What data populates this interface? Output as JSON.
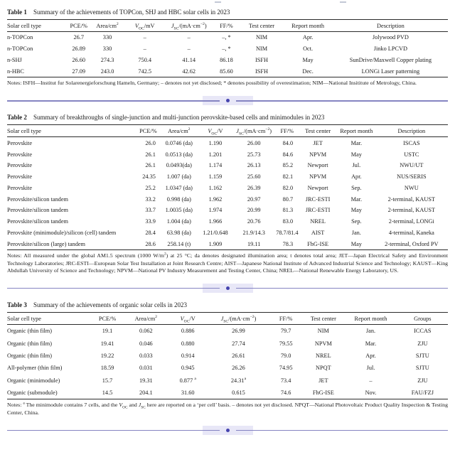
{
  "page": {
    "background": "#ffffff",
    "text_color": "#1b1b1b",
    "rule_color": "#2b2b2b"
  },
  "divider": {
    "dot": "",
    "line_color": "#8584c2",
    "dot_color": "#4543ae",
    "highlight_color": "#e8e7f7"
  },
  "tables": [
    {
      "caption_label": "Table 1",
      "caption_text": "Summary of the achievements of TOPCon, SHJ and HBC solar cells in 2023",
      "columns": [
        "Solar cell type",
        "PCE/%",
        "Area/cm^2^",
        "*V*~OC~/mV",
        "*J*~SC~/(mA·cm^−2^)",
        "FF/%",
        "Test center",
        "Report month",
        "Description"
      ],
      "rows": [
        [
          "n-TOPCon",
          "26.7",
          "330",
          "–",
          "–",
          "–, *",
          "NIM",
          "Apr.",
          "Jolywood PVD"
        ],
        [
          "n-TOPCon",
          "26.89",
          "330",
          "–",
          "–",
          "–, *",
          "NIM",
          "Oct.",
          "Jinko LPCVD"
        ],
        [
          "n-SHJ",
          "26.60",
          "274.3",
          "750.4",
          "41.14",
          "86.18",
          "ISFH",
          "May",
          "SunDrive/Maxwell Copper plating"
        ],
        [
          "n-HBC",
          "27.09",
          "243.0",
          "742.5",
          "42.62",
          "85.60",
          "ISFH",
          "Dec.",
          "LONGi Laser patterning"
        ]
      ],
      "notes": "Notes: ISFH—Institut fur Solarenergieforschung Hameln, Germany; – denotes not yet disclosed; * denotes possibility of overestimation; NIM—National Insititute of Metrology, China."
    },
    {
      "caption_label": "Table 2",
      "caption_text": "Summary of breakthroughs of single-junction and multi-junction perovskite-based cells and minimodules in 2023",
      "columns": [
        "Solar cell type",
        "PCE/%",
        "Area/cm^2^",
        "*V*~OC~/V",
        "*J*~SC~/(mA·cm^−2^)",
        "FF/%",
        "Test center",
        "Report month",
        "Description"
      ],
      "rows": [
        [
          "Perovskite",
          "26.0",
          "0.0746 (da)",
          "1.190",
          "26.00",
          "84.0",
          "JET",
          "Mar.",
          "ISCAS"
        ],
        [
          "Perovskite",
          "26.1",
          "0.0513 (da)",
          "1.201",
          "25.73",
          "84.6",
          "NPVM",
          "May",
          "USTC"
        ],
        [
          "Perovskite",
          "26.1",
          "0.0493(da)",
          "1.174",
          "26.13",
          "85.2",
          "Newport",
          "Jul.",
          "NWU/UT"
        ],
        [
          "Perovskite",
          "24.35",
          "1.007 (da)",
          "1.159",
          "25.60",
          "82.1",
          "NPVM",
          "Apr.",
          "NUS/SERIS"
        ],
        [
          "Perovskite",
          "25.2",
          "1.0347 (da)",
          "1.162",
          "26.39",
          "82.0",
          "Newport",
          "Sep.",
          "NWU"
        ],
        [
          "Perovskite/silicon tandem",
          "33.2",
          "0.998 (da)",
          "1.962",
          "20.97",
          "80.7",
          "JRC-ESTI",
          "Mar.",
          "2-terminal, KAUST"
        ],
        [
          "Perovskite/silicon tandem",
          "33.7",
          "1.0035 (da)",
          "1.974",
          "20.99",
          "81.3",
          "JRC-ESTI",
          "May",
          "2-terminal, KAUST"
        ],
        [
          "Perovskite/silicon tandem",
          "33.9",
          "1.004 (da)",
          "1.966",
          "20.76",
          "83.0",
          "NREL",
          "Sep.",
          "2-terminal, LONGi"
        ],
        [
          "Perovskite (minimodule)/silicon (cell) tandem",
          "28.4",
          "63.98 (da)",
          "1.21/0.648",
          "21.9/14.3",
          "78.7/81.4",
          "AIST",
          "Jan.",
          "4-terminal, Kaneka"
        ],
        [
          "Perovskite/silicon (large) tandem",
          "28.6",
          "258.14 (t)",
          "1.909",
          "19.11",
          "78.3",
          "FhG-ISE",
          "May",
          "2-terminal, Oxford PV"
        ]
      ],
      "notes": "Notes: All measured under the global AM1.5 spectrum (1000 W/m^2^) at 25 °C; da denotes designated illumination area; t denotes total area; JET—Japan Electrical Safety and Environment Technology Laboratories; JRC-ESTI—European Solar Test Installation at Joint Research Centre; AIST—Japanese National Institute of Advanced Industrial Science and Technology; KAUST—King Abdullah University of Science and Technology; NPVM—National PV Industry Measurement and Testing Center, China; NREL—National Renewable Energy Laboratory, US."
    },
    {
      "caption_label": "Table 3",
      "caption_text": "Summary of the achievements of organic solar cells in 2023",
      "columns": [
        "Solar cell type",
        "PCE/%",
        "Area/cm^2^",
        "*V*~OC~/V",
        "*J*~SC~/(mA·cm^−2^)",
        "FF/%",
        "Test center",
        "Report month",
        "Groups"
      ],
      "rows": [
        [
          "Organic (thin film)",
          "19.1",
          "0.062",
          "0.886",
          "26.99",
          "79.7",
          "NIM",
          "Jan.",
          "ICCAS"
        ],
        [
          "Organic (thin film)",
          "19.41",
          "0.046",
          "0.880",
          "27.74",
          "79.55",
          "NPVM",
          "Mar.",
          "ZJU"
        ],
        [
          "Organic (thin film)",
          "19.22",
          "0.033",
          "0.914",
          "26.61",
          "79.0",
          "NREL",
          "Apr.",
          "SJTU"
        ],
        [
          "All-polymer (thin film)",
          "18.59",
          "0.031",
          "0.945",
          "26.26",
          "74.95",
          "NPQT",
          "Jul.",
          "SJTU"
        ],
        [
          "Organic (minimodule)",
          "15.7",
          "19.31",
          "0.877 ^a^",
          "24.31^a^",
          "73.4",
          "JET",
          "–",
          "ZJU"
        ],
        [
          "Organic (submodule)",
          "14.5",
          "204.1",
          "31.60",
          "0.615",
          "74.6",
          "FhG-ISE",
          "Nov.",
          "FAU/FZJ"
        ]
      ],
      "notes": "Notes: ^a^ The minimodule contains 7 cells, and the *V*~OC~ and *J*~SC~ here are reported on a ‘per cell’ basis. – denotes not yet disclosed. NPQT—National Photovoltaic Product Quality Inspection & Testing Center, China."
    }
  ]
}
